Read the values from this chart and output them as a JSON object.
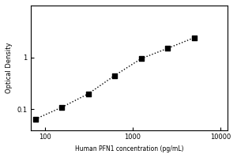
{
  "x_values": [
    78.125,
    156.25,
    312.5,
    625,
    1250,
    2500,
    5000
  ],
  "y_values": [
    0.065,
    0.11,
    0.2,
    0.45,
    0.95,
    1.5,
    2.4
  ],
  "xlabel": "Human PFN1 concentration (pg/mL)",
  "ylabel": "Optical Density",
  "title": "",
  "xlim": [
    70,
    12000
  ],
  "ylim": [
    0.04,
    10
  ],
  "xticks": [
    100,
    1000,
    10000
  ],
  "xtick_labels": [
    "100",
    "1000",
    "10000"
  ],
  "yticks": [
    0.1,
    1
  ],
  "ytick_labels": [
    "0.1",
    "1"
  ],
  "marker": "s",
  "marker_color": "black",
  "marker_size": 4,
  "line_style": "dotted",
  "line_color": "black",
  "line_width": 1.0,
  "background_color": "#ffffff"
}
